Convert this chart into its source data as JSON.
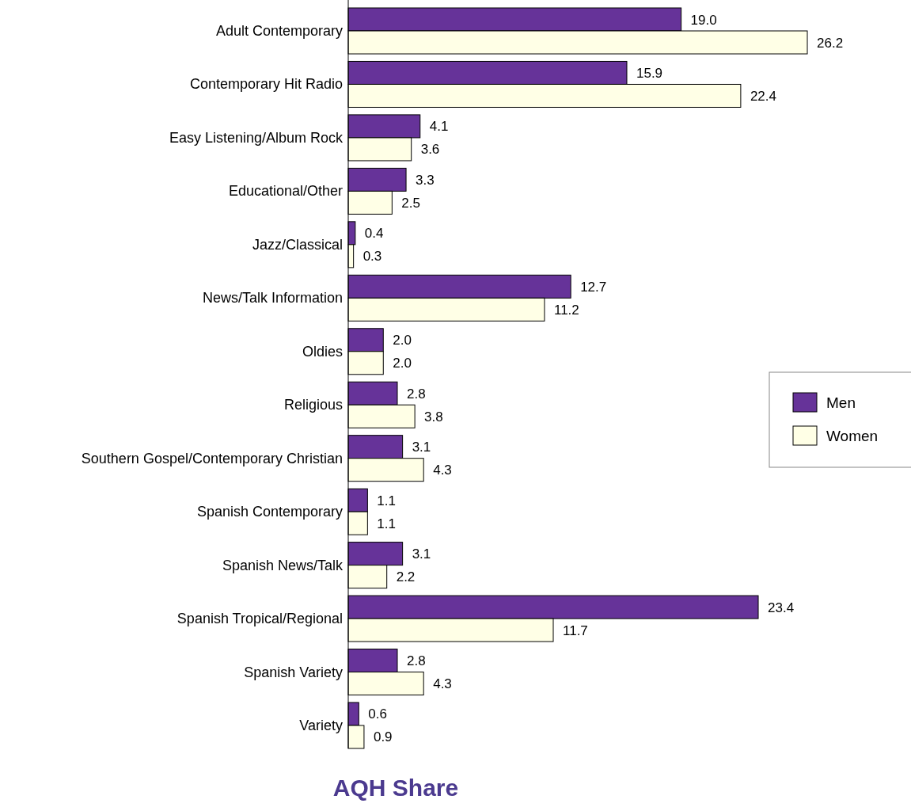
{
  "chart_data": {
    "type": "bar",
    "orientation": "horizontal",
    "xlabel": "AQH Share",
    "categories": [
      "Adult Contemporary",
      "Contemporary Hit Radio",
      "Easy Listening/Album Rock",
      "Educational/Other",
      "Jazz/Classical",
      "News/Talk Information",
      "Oldies",
      "Religious",
      "Southern Gospel/Contemporary Christian",
      "Spanish Contemporary",
      "Spanish News/Talk",
      "Spanish Tropical/Regional",
      "Spanish Variety",
      "Variety"
    ],
    "series": [
      {
        "name": "Men",
        "color": "#663399",
        "values": [
          19.0,
          15.9,
          4.1,
          3.3,
          0.4,
          12.7,
          2.0,
          2.8,
          3.1,
          1.1,
          3.1,
          23.4,
          2.8,
          0.6
        ],
        "value_labels": [
          "19.0",
          "15.9",
          "4.1",
          "3.3",
          "0.4",
          "12.7",
          "2.0",
          "2.8",
          "3.1",
          "1.1",
          "3.1",
          "23.4",
          "2.8",
          "0.6"
        ]
      },
      {
        "name": "Women",
        "color": "#ffffe6",
        "values": [
          26.2,
          22.4,
          3.6,
          2.5,
          0.3,
          11.2,
          2.0,
          3.8,
          4.3,
          1.1,
          2.2,
          11.7,
          4.3,
          0.9
        ],
        "value_labels": [
          "26.2",
          "22.4",
          "3.6",
          "2.5",
          "0.3",
          "11.2",
          "2.0",
          "3.8",
          "4.3",
          "1.1",
          "2.2",
          "11.7",
          "4.3",
          "0.9"
        ]
      }
    ],
    "legend": "right"
  }
}
